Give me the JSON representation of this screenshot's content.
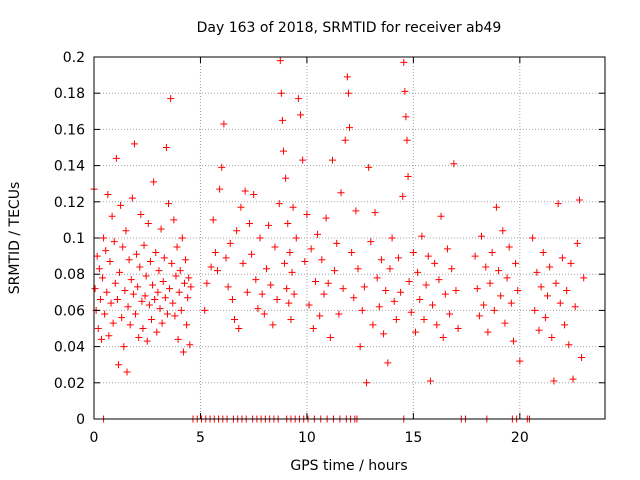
{
  "chart_data": {
    "type": "scatter",
    "title": "Day 163 of 2018, SRMTID for receiver ab49",
    "xlabel": "GPS time / hours",
    "ylabel": "SRMTID / TECUs",
    "xlim": [
      0,
      24
    ],
    "ylim": [
      0,
      0.2
    ],
    "xticks": [
      0,
      5,
      10,
      15,
      20
    ],
    "xtick_labels": [
      "0",
      "5",
      "10",
      "15",
      "20"
    ],
    "yticks": [
      0,
      0.02,
      0.04,
      0.06,
      0.08,
      0.1,
      0.12,
      0.14,
      0.16,
      0.18,
      0.2
    ],
    "ytick_labels": [
      "0",
      "0.02",
      "0.04",
      "0.06",
      "0.08",
      "0.1",
      "0.12",
      "0.14",
      "0.16",
      "0.18",
      "0.2"
    ],
    "grid": true,
    "marker": "+",
    "series": [
      {
        "name": "SRMTID",
        "color": "#ff0000",
        "points": [
          [
            0.0,
            0.127
          ],
          [
            0.05,
            0.072
          ],
          [
            0.1,
            0.06
          ],
          [
            0.15,
            0.09
          ],
          [
            0.2,
            0.05
          ],
          [
            0.25,
            0.083
          ],
          [
            0.3,
            0.066
          ],
          [
            0.35,
            0.044
          ],
          [
            0.4,
            0.078
          ],
          [
            0.45,
            0.1
          ],
          [
            0.5,
            0.058
          ],
          [
            0.55,
            0.093
          ],
          [
            0.6,
            0.07
          ],
          [
            0.65,
            0.124
          ],
          [
            0.7,
            0.046
          ],
          [
            0.75,
            0.087
          ],
          [
            0.8,
            0.064
          ],
          [
            0.85,
            0.112
          ],
          [
            0.9,
            0.053
          ],
          [
            0.95,
            0.098
          ],
          [
            1.0,
            0.075
          ],
          [
            1.05,
            0.144
          ],
          [
            1.1,
            0.066
          ],
          [
            1.15,
            0.03
          ],
          [
            1.2,
            0.081
          ],
          [
            1.25,
            0.118
          ],
          [
            1.3,
            0.056
          ],
          [
            1.35,
            0.095
          ],
          [
            1.4,
            0.04
          ],
          [
            1.45,
            0.071
          ],
          [
            1.5,
            0.104
          ],
          [
            1.55,
            0.026
          ],
          [
            1.6,
            0.062
          ],
          [
            1.65,
            0.088
          ],
          [
            1.7,
            0.052
          ],
          [
            1.75,
            0.077
          ],
          [
            1.8,
            0.122
          ],
          [
            1.85,
            0.069
          ],
          [
            1.9,
            0.152
          ],
          [
            1.95,
            0.058
          ],
          [
            2.0,
            0.091
          ],
          [
            2.05,
            0.073
          ],
          [
            2.1,
            0.045
          ],
          [
            2.15,
            0.084
          ],
          [
            2.2,
            0.113
          ],
          [
            2.25,
            0.065
          ],
          [
            2.3,
            0.05
          ],
          [
            2.35,
            0.096
          ],
          [
            2.4,
            0.068
          ],
          [
            2.45,
            0.079
          ],
          [
            2.5,
            0.043
          ],
          [
            2.55,
            0.108
          ],
          [
            2.6,
            0.063
          ],
          [
            2.65,
            0.087
          ],
          [
            2.7,
            0.055
          ],
          [
            2.75,
            0.074
          ],
          [
            2.8,
            0.131
          ],
          [
            2.85,
            0.066
          ],
          [
            2.9,
            0.092
          ],
          [
            2.95,
            0.048
          ],
          [
            3.0,
            0.07
          ],
          [
            3.05,
            0.082
          ],
          [
            3.1,
            0.061
          ],
          [
            3.15,
            0.105
          ],
          [
            3.2,
            0.053
          ],
          [
            3.25,
            0.076
          ],
          [
            3.3,
            0.089
          ],
          [
            3.35,
            0.067
          ],
          [
            3.4,
            0.15
          ],
          [
            3.45,
            0.058
          ],
          [
            3.5,
            0.119
          ],
          [
            3.55,
            0.072
          ],
          [
            3.6,
            0.177
          ],
          [
            3.65,
            0.086
          ],
          [
            3.7,
            0.064
          ],
          [
            3.75,
            0.11
          ],
          [
            3.8,
            0.057
          ],
          [
            3.85,
            0.079
          ],
          [
            3.9,
            0.095
          ],
          [
            3.95,
            0.044
          ],
          [
            4.0,
            0.07
          ],
          [
            4.05,
            0.082
          ],
          [
            4.1,
            0.06
          ],
          [
            4.15,
            0.1
          ],
          [
            4.2,
            0.037
          ],
          [
            4.25,
            0.075
          ],
          [
            4.3,
            0.088
          ],
          [
            4.35,
            0.052
          ],
          [
            4.4,
            0.067
          ],
          [
            4.45,
            0.078
          ],
          [
            4.5,
            0.041
          ],
          [
            4.55,
            0.073
          ],
          [
            5.2,
            0.06
          ],
          [
            5.3,
            0.075
          ],
          [
            5.5,
            0.084
          ],
          [
            5.6,
            0.11
          ],
          [
            5.7,
            0.092
          ],
          [
            5.8,
            0.082
          ],
          [
            5.9,
            0.127
          ],
          [
            6.0,
            0.139
          ],
          [
            6.1,
            0.163
          ],
          [
            6.2,
            0.089
          ],
          [
            6.3,
            0.073
          ],
          [
            6.4,
            0.097
          ],
          [
            6.5,
            0.066
          ],
          [
            6.6,
            0.055
          ],
          [
            6.7,
            0.104
          ],
          [
            6.8,
            0.05
          ],
          [
            6.9,
            0.117
          ],
          [
            7.0,
            0.086
          ],
          [
            7.1,
            0.126
          ],
          [
            7.2,
            0.07
          ],
          [
            7.3,
            0.108
          ],
          [
            7.4,
            0.091
          ],
          [
            7.5,
            0.124
          ],
          [
            7.6,
            0.077
          ],
          [
            7.7,
            0.061
          ],
          [
            7.8,
            0.1
          ],
          [
            7.9,
            0.069
          ],
          [
            8.0,
            0.058
          ],
          [
            8.1,
            0.083
          ],
          [
            8.2,
            0.107
          ],
          [
            8.3,
            0.074
          ],
          [
            8.4,
            0.052
          ],
          [
            8.5,
            0.095
          ],
          [
            8.6,
            0.066
          ],
          [
            8.7,
            0.119
          ],
          [
            8.75,
            0.198
          ],
          [
            8.8,
            0.18
          ],
          [
            8.85,
            0.165
          ],
          [
            8.9,
            0.148
          ],
          [
            8.95,
            0.086
          ],
          [
            9.0,
            0.133
          ],
          [
            9.05,
            0.072
          ],
          [
            9.1,
            0.108
          ],
          [
            9.15,
            0.064
          ],
          [
            9.2,
            0.092
          ],
          [
            9.25,
            0.055
          ],
          [
            9.3,
            0.081
          ],
          [
            9.35,
            0.117
          ],
          [
            9.4,
            0.069
          ],
          [
            9.5,
            0.1
          ],
          [
            9.6,
            0.177
          ],
          [
            9.7,
            0.168
          ],
          [
            9.8,
            0.143
          ],
          [
            9.9,
            0.087
          ],
          [
            10.0,
            0.113
          ],
          [
            10.1,
            0.063
          ],
          [
            10.2,
            0.094
          ],
          [
            10.3,
            0.05
          ],
          [
            10.4,
            0.076
          ],
          [
            10.5,
            0.102
          ],
          [
            10.6,
            0.057
          ],
          [
            10.7,
            0.088
          ],
          [
            10.8,
            0.069
          ],
          [
            10.9,
            0.111
          ],
          [
            11.0,
            0.075
          ],
          [
            11.1,
            0.045
          ],
          [
            11.2,
            0.143
          ],
          [
            11.3,
            0.082
          ],
          [
            11.4,
            0.097
          ],
          [
            11.5,
            0.058
          ],
          [
            11.6,
            0.125
          ],
          [
            11.7,
            0.072
          ],
          [
            11.8,
            0.154
          ],
          [
            11.9,
            0.189
          ],
          [
            11.95,
            0.18
          ],
          [
            12.0,
            0.161
          ],
          [
            12.1,
            0.092
          ],
          [
            12.2,
            0.067
          ],
          [
            12.3,
            0.115
          ],
          [
            12.4,
            0.083
          ],
          [
            12.5,
            0.04
          ],
          [
            12.6,
            0.06
          ],
          [
            12.7,
            0.073
          ],
          [
            12.8,
            0.02
          ],
          [
            12.9,
            0.139
          ],
          [
            13.0,
            0.098
          ],
          [
            13.1,
            0.052
          ],
          [
            13.2,
            0.114
          ],
          [
            13.3,
            0.078
          ],
          [
            13.4,
            0.062
          ],
          [
            13.5,
            0.088
          ],
          [
            13.6,
            0.047
          ],
          [
            13.7,
            0.071
          ],
          [
            13.8,
            0.031
          ],
          [
            13.9,
            0.083
          ],
          [
            14.0,
            0.1
          ],
          [
            14.1,
            0.065
          ],
          [
            14.2,
            0.055
          ],
          [
            14.3,
            0.089
          ],
          [
            14.4,
            0.07
          ],
          [
            14.5,
            0.123
          ],
          [
            14.55,
            0.197
          ],
          [
            14.6,
            0.181
          ],
          [
            14.65,
            0.167
          ],
          [
            14.7,
            0.154
          ],
          [
            14.75,
            0.134
          ],
          [
            14.8,
            0.076
          ],
          [
            14.9,
            0.059
          ],
          [
            15.0,
            0.092
          ],
          [
            15.1,
            0.048
          ],
          [
            15.2,
            0.081
          ],
          [
            15.3,
            0.066
          ],
          [
            15.4,
            0.101
          ],
          [
            15.5,
            0.055
          ],
          [
            15.6,
            0.074
          ],
          [
            15.7,
            0.09
          ],
          [
            15.8,
            0.021
          ],
          [
            15.9,
            0.063
          ],
          [
            16.0,
            0.086
          ],
          [
            16.1,
            0.052
          ],
          [
            16.2,
            0.077
          ],
          [
            16.3,
            0.112
          ],
          [
            16.4,
            0.045
          ],
          [
            16.5,
            0.069
          ],
          [
            16.6,
            0.094
          ],
          [
            16.7,
            0.058
          ],
          [
            16.8,
            0.083
          ],
          [
            16.9,
            0.141
          ],
          [
            17.0,
            0.071
          ],
          [
            17.1,
            0.05
          ],
          [
            17.9,
            0.09
          ],
          [
            18.0,
            0.072
          ],
          [
            18.1,
            0.057
          ],
          [
            18.2,
            0.101
          ],
          [
            18.3,
            0.063
          ],
          [
            18.4,
            0.084
          ],
          [
            18.5,
            0.048
          ],
          [
            18.6,
            0.075
          ],
          [
            18.7,
            0.092
          ],
          [
            18.8,
            0.06
          ],
          [
            18.9,
            0.117
          ],
          [
            19.0,
            0.082
          ],
          [
            19.1,
            0.068
          ],
          [
            19.2,
            0.104
          ],
          [
            19.3,
            0.053
          ],
          [
            19.4,
            0.078
          ],
          [
            19.5,
            0.095
          ],
          [
            19.6,
            0.064
          ],
          [
            19.7,
            0.043
          ],
          [
            19.8,
            0.086
          ],
          [
            19.9,
            0.071
          ],
          [
            20.0,
            0.032
          ],
          [
            20.6,
            0.1
          ],
          [
            20.7,
            0.06
          ],
          [
            20.8,
            0.081
          ],
          [
            20.9,
            0.049
          ],
          [
            21.0,
            0.073
          ],
          [
            21.1,
            0.092
          ],
          [
            21.2,
            0.056
          ],
          [
            21.3,
            0.068
          ],
          [
            21.4,
            0.084
          ],
          [
            21.5,
            0.045
          ],
          [
            21.6,
            0.021
          ],
          [
            21.7,
            0.075
          ],
          [
            21.8,
            0.119
          ],
          [
            21.9,
            0.064
          ],
          [
            22.0,
            0.089
          ],
          [
            22.1,
            0.052
          ],
          [
            22.2,
            0.071
          ],
          [
            22.3,
            0.041
          ],
          [
            22.4,
            0.086
          ],
          [
            22.5,
            0.022
          ],
          [
            22.6,
            0.062
          ],
          [
            22.7,
            0.097
          ],
          [
            22.8,
            0.121
          ],
          [
            22.9,
            0.034
          ],
          [
            23.0,
            0.078
          ]
        ]
      },
      {
        "name": "zero-values",
        "color": "#ff0000",
        "x": [
          0.45,
          4.65,
          4.85,
          5.05,
          5.25,
          5.45,
          5.65,
          5.85,
          6.05,
          6.25,
          6.55,
          6.75,
          6.95,
          7.15,
          7.45,
          7.65,
          7.85,
          8.05,
          8.25,
          8.45,
          8.65,
          9.05,
          9.25,
          9.45,
          9.65,
          9.85,
          10.05,
          10.35,
          10.65,
          10.95,
          11.25,
          11.55,
          11.85,
          12.05,
          12.25,
          12.35,
          14.55,
          17.25,
          17.45,
          18.45,
          19.65,
          19.85,
          20.35,
          20.45
        ],
        "y": 0
      }
    ]
  }
}
